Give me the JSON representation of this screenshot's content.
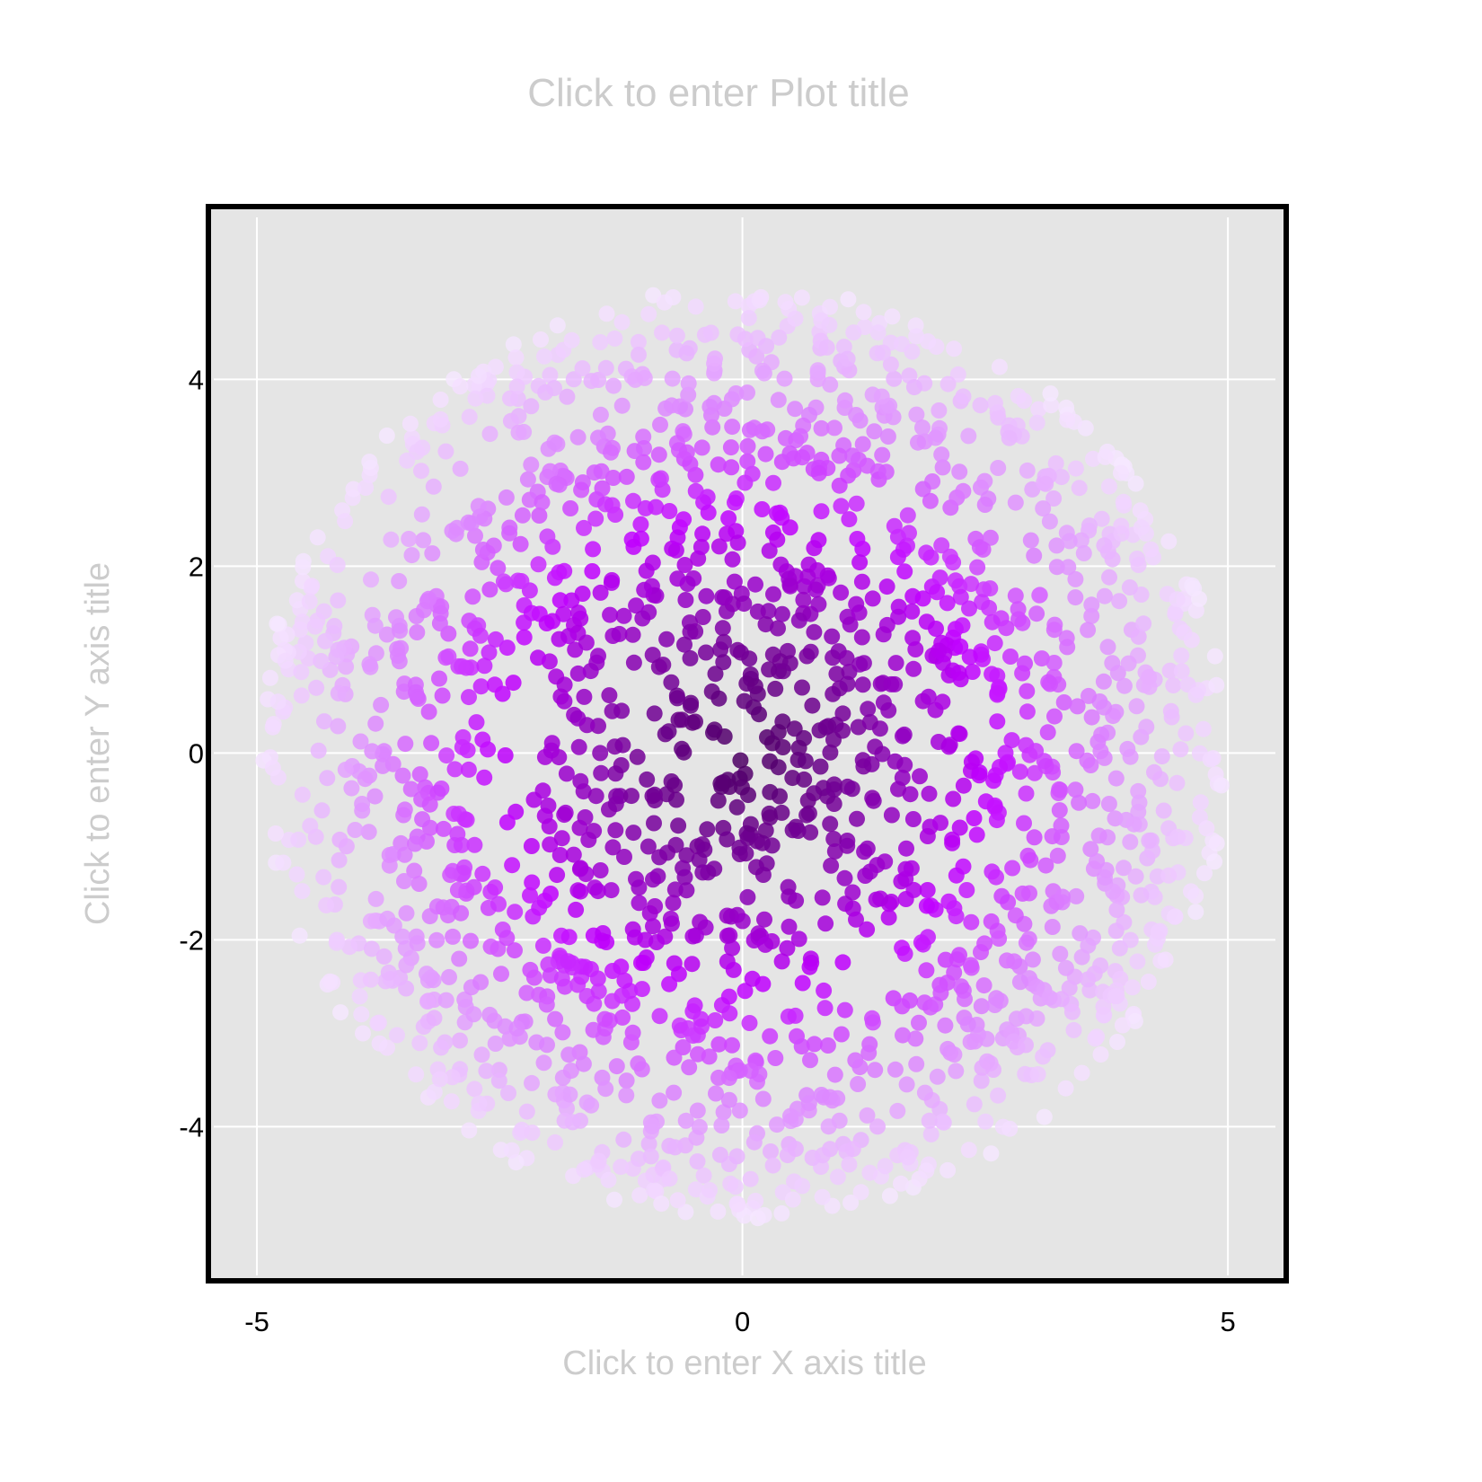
{
  "chart_data": {
    "type": "scatter",
    "title": "Click to enter Plot title",
    "xlabel": "Click to enter X axis title",
    "ylabel": "Click to enter Y axis title",
    "xlim": [
      -5.5,
      5.6
    ],
    "ylim": [
      -5.65,
      5.85
    ],
    "x_ticks": [
      -5,
      0,
      5
    ],
    "x_tick_labels": [
      "-5",
      "0",
      "5"
    ],
    "y_ticks": [
      -4,
      -2,
      0,
      2,
      4
    ],
    "y_tick_labels": [
      "-4",
      "-2",
      "0",
      "2",
      "4"
    ],
    "grid": true,
    "legend": "none",
    "color_encoding": "distance from origin",
    "color_scale": [
      "#4a0060",
      "#7a00a0",
      "#c000ff",
      "#dd88ff",
      "#f6e8ff"
    ],
    "series": [
      {
        "distribution": "uniform disk",
        "center": [
          0,
          0
        ],
        "radius": 5.0,
        "point_count": 2000
      }
    ]
  },
  "colors": {
    "plot_background": "#e5e5e5",
    "grid": "#ffffff",
    "frame": "#000000",
    "placeholder_text": "#cccccc"
  }
}
